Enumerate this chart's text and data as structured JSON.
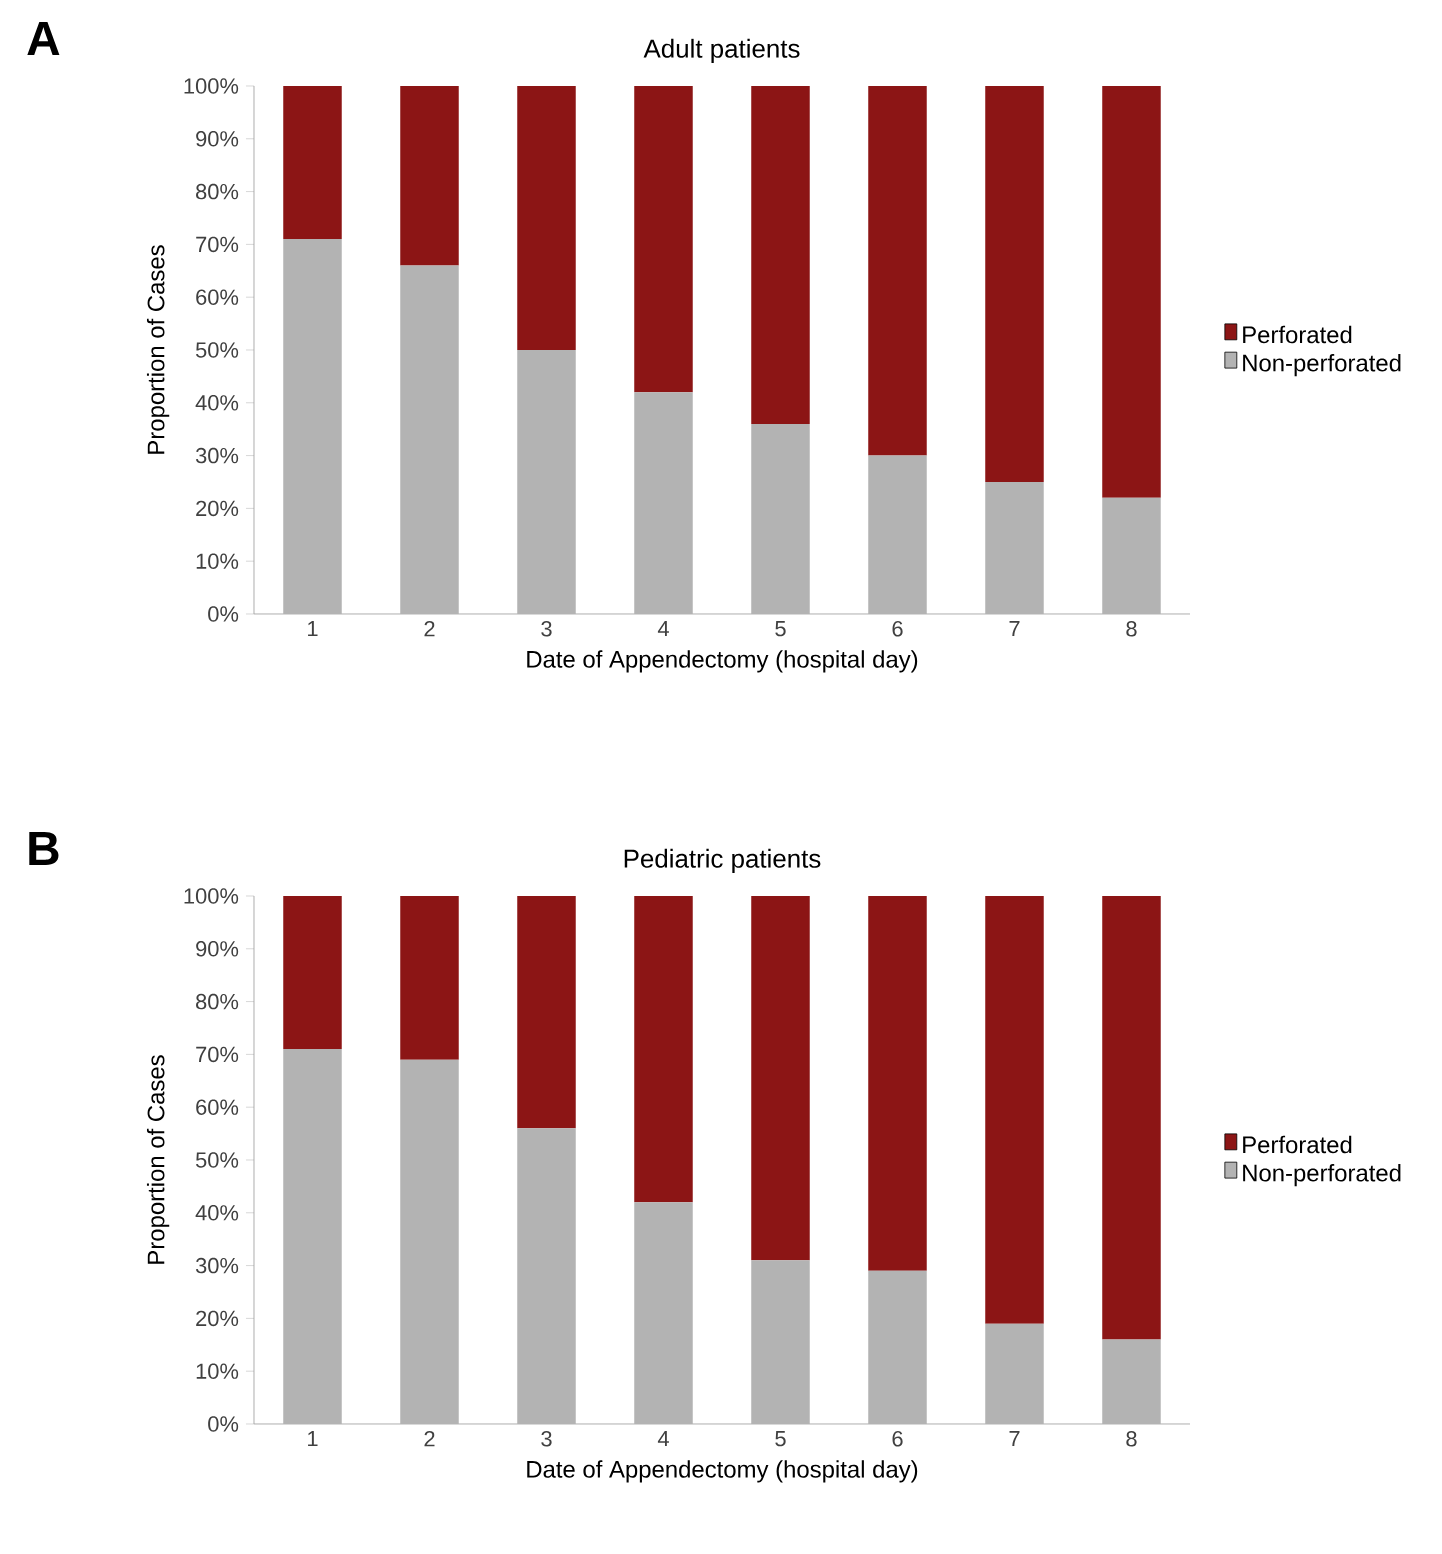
{
  "chart_data": [
    {
      "type": "bar",
      "title": "Adult patients",
      "xlabel": "Date of Appendectomy (hospital day)",
      "ylabel": "Proportion of Cases",
      "annotations": [
        "A"
      ],
      "stacked": true,
      "legend": "right",
      "categories": [
        "1",
        "2",
        "3",
        "4",
        "5",
        "6",
        "7",
        "8"
      ],
      "series": [
        {
          "name": "Non-perforated",
          "color": "#b3b3b3",
          "values": [
            71,
            66,
            50,
            42,
            36,
            30,
            25,
            22
          ]
        },
        {
          "name": "Perforated",
          "color": "#8c1515",
          "values": [
            29,
            34,
            50,
            58,
            64,
            70,
            75,
            78
          ]
        }
      ],
      "ylim": [
        0,
        100
      ],
      "yticks": [
        {
          "value": 0,
          "label": "0%"
        },
        {
          "value": 10,
          "label": "10%"
        },
        {
          "value": 20,
          "label": "20%"
        },
        {
          "value": 30,
          "label": "30%"
        },
        {
          "value": 40,
          "label": "40%"
        },
        {
          "value": 50,
          "label": "50%"
        },
        {
          "value": 60,
          "label": "60%"
        },
        {
          "value": 70,
          "label": "70%"
        },
        {
          "value": 80,
          "label": "80%"
        },
        {
          "value": 90,
          "label": "90%"
        },
        {
          "value": 100,
          "label": "100%"
        }
      ]
    },
    {
      "type": "bar",
      "title": "Pediatric patients",
      "xlabel": "Date of Appendectomy (hospital day)",
      "ylabel": "Proportion of Cases",
      "annotations": [
        "B"
      ],
      "stacked": true,
      "legend": "right",
      "categories": [
        "1",
        "2",
        "3",
        "4",
        "5",
        "6",
        "7",
        "8"
      ],
      "series": [
        {
          "name": "Non-perforated",
          "color": "#b3b3b3",
          "values": [
            71,
            69,
            56,
            42,
            31,
            29,
            19,
            16
          ]
        },
        {
          "name": "Perforated",
          "color": "#8c1515",
          "values": [
            29,
            31,
            44,
            58,
            69,
            71,
            81,
            84
          ]
        }
      ],
      "ylim": [
        0,
        100
      ],
      "yticks": [
        {
          "value": 0,
          "label": "0%"
        },
        {
          "value": 10,
          "label": "10%"
        },
        {
          "value": 20,
          "label": "20%"
        },
        {
          "value": 30,
          "label": "30%"
        },
        {
          "value": 40,
          "label": "40%"
        },
        {
          "value": 50,
          "label": "50%"
        },
        {
          "value": 60,
          "label": "60%"
        },
        {
          "value": 70,
          "label": "70%"
        },
        {
          "value": 80,
          "label": "80%"
        },
        {
          "value": 90,
          "label": "90%"
        },
        {
          "value": 100,
          "label": "100%"
        }
      ]
    }
  ]
}
